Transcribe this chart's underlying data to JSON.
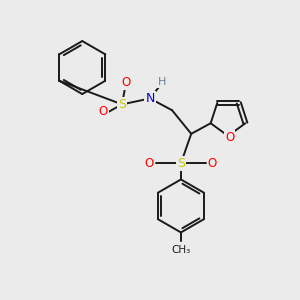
{
  "background_color": "#ebebeb",
  "bond_color": "#1a1a1a",
  "bond_width": 1.4,
  "atom_colors": {
    "S": "#cccc00",
    "N": "#0000cc",
    "O": "#ff0000",
    "H": "#708090",
    "C": "#1a1a1a"
  },
  "figsize": [
    3.0,
    3.0
  ],
  "dpi": 100
}
